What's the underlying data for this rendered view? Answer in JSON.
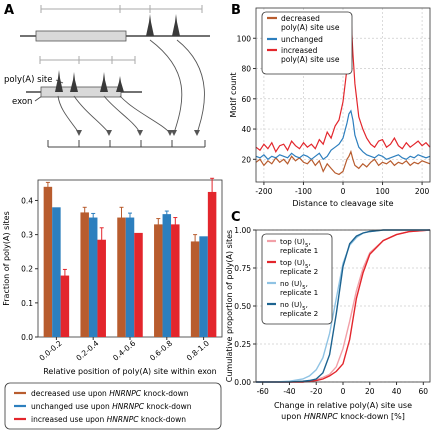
{
  "panels": {
    "a": {
      "letter": "A"
    },
    "b": {
      "letter": "B"
    },
    "c": {
      "letter": "C"
    }
  },
  "colors": {
    "decreased": "#b85c2e",
    "unchanged": "#2d7fbe",
    "increased": "#e3262c",
    "light_red": "#f2a0a8",
    "light_blue": "#8fc3e4",
    "dark_blue": "#1d6390",
    "gene_fill": "#d9d9d9",
    "peak": "#3a3a3a"
  },
  "schematic": {
    "polya_label": "poly(A) site",
    "exon_label": "exon"
  },
  "chart_data": [
    {
      "type": "bar",
      "panel": "A",
      "categories": [
        "0.0-0.2",
        "0.2-0.4",
        "0.4-0.6",
        "0.6-0.8",
        "0.8-1.0"
      ],
      "series": [
        {
          "name": "decreased use upon HNRNPC knock-down",
          "values": [
            0.44,
            0.365,
            0.35,
            0.33,
            0.28
          ],
          "errors": [
            0.013,
            0.015,
            0.03,
            0.017,
            0.02
          ]
        },
        {
          "name": "unchanged use upon HNRNPC knock-down",
          "values": [
            0.38,
            0.35,
            0.35,
            0.36,
            0.295
          ],
          "errors": [
            0.0,
            0.012,
            0.013,
            0.009,
            0.0
          ]
        },
        {
          "name": "increased use upon HNRNPC knock-down",
          "values": [
            0.18,
            0.285,
            0.305,
            0.33,
            0.425
          ],
          "errors": [
            0.018,
            0.035,
            0.0,
            0.02,
            0.04
          ]
        }
      ],
      "yticks": [
        0.0,
        0.1,
        0.2,
        0.3,
        0.4
      ],
      "ylim": [
        0,
        0.46
      ],
      "ylabel": "Fraction of poly(A) sites",
      "xlabel": "Relative position of poly(A) site within exon",
      "legend": {
        "items": [
          {
            "prefix": "decreased use upon ",
            "gene": "HNRNPC",
            "suffix": " knock-down"
          },
          {
            "prefix": "unchanged use upon ",
            "gene": "HNRNPC",
            "suffix": " knock-down"
          },
          {
            "prefix": "increased use upon ",
            "gene": "HNRNPC",
            "suffix": " knock-down"
          }
        ]
      }
    },
    {
      "type": "line",
      "panel": "B",
      "x": [
        -220,
        -210,
        -200,
        -190,
        -180,
        -170,
        -160,
        -150,
        -140,
        -130,
        -120,
        -110,
        -100,
        -90,
        -80,
        -70,
        -60,
        -50,
        -40,
        -30,
        -20,
        -10,
        0,
        10,
        15,
        20,
        25,
        30,
        40,
        50,
        60,
        70,
        80,
        90,
        100,
        110,
        120,
        130,
        140,
        150,
        160,
        170,
        180,
        190,
        200,
        210,
        220
      ],
      "series": [
        {
          "name": "decreased poly(A) site use",
          "values": [
            18,
            20,
            16,
            19,
            17,
            21,
            18,
            20,
            17,
            22,
            19,
            21,
            18,
            17,
            20,
            16,
            19,
            12,
            17,
            14,
            11,
            10,
            12,
            20,
            22,
            25,
            20,
            16,
            14,
            17,
            15,
            18,
            20,
            16,
            18,
            17,
            19,
            16,
            18,
            17,
            19,
            16,
            18,
            17,
            19,
            18,
            17
          ]
        },
        {
          "name": "unchanged",
          "values": [
            22,
            21,
            23,
            20,
            22,
            21,
            23,
            22,
            21,
            24,
            22,
            21,
            23,
            22,
            20,
            22,
            24,
            20,
            22,
            26,
            28,
            30,
            34,
            44,
            50,
            52,
            46,
            36,
            28,
            25,
            23,
            22,
            21,
            23,
            22,
            20,
            21,
            22,
            23,
            21,
            20,
            22,
            21,
            23,
            22,
            21,
            22
          ]
        },
        {
          "name": "increased poly(A) site use",
          "values": [
            28,
            26,
            30,
            27,
            31,
            25,
            29,
            30,
            26,
            32,
            29,
            27,
            31,
            28,
            30,
            27,
            33,
            30,
            38,
            34,
            42,
            46,
            58,
            80,
            100,
            115,
            90,
            70,
            48,
            40,
            34,
            30,
            28,
            32,
            33,
            28,
            30,
            34,
            29,
            27,
            31,
            28,
            30,
            32,
            29,
            31,
            28
          ]
        }
      ],
      "xticks": [
        -200,
        -100,
        0,
        100,
        200
      ],
      "yticks": [
        20,
        40,
        60,
        80,
        100
      ],
      "xlim": [
        -220,
        220
      ],
      "ylim": [
        5,
        120
      ],
      "xlabel": "Distance to cleavage site",
      "ylabel": "Motif count",
      "legend_labels": [
        "decreased\npoly(A) site use",
        "unchanged",
        "increased\npoly(A) site use"
      ],
      "legend_position": "top-left"
    },
    {
      "type": "line",
      "panel": "C",
      "x": [
        -65,
        -50,
        -40,
        -30,
        -25,
        -20,
        -15,
        -10,
        -5,
        0,
        5,
        10,
        15,
        20,
        30,
        40,
        50,
        65
      ],
      "series": [
        {
          "name": "top (U)5, replicate 1",
          "values": [
            0.0,
            0.0,
            0.0,
            0.0,
            0.005,
            0.015,
            0.03,
            0.05,
            0.1,
            0.22,
            0.4,
            0.6,
            0.75,
            0.85,
            0.93,
            0.97,
            0.99,
            1.0
          ]
        },
        {
          "name": "top (U)5, replicate 2",
          "values": [
            0.0,
            0.0,
            0.0,
            0.0,
            0.005,
            0.01,
            0.02,
            0.04,
            0.07,
            0.12,
            0.28,
            0.55,
            0.72,
            0.84,
            0.93,
            0.97,
            0.99,
            1.0
          ]
        },
        {
          "name": "no (U)5, replicate 1",
          "values": [
            0.0,
            0.0,
            0.005,
            0.02,
            0.04,
            0.08,
            0.16,
            0.32,
            0.55,
            0.78,
            0.9,
            0.95,
            0.98,
            0.99,
            1.0,
            1.0,
            1.0,
            1.0
          ]
        },
        {
          "name": "no (U)5, replicate 2",
          "values": [
            0.0,
            0.0,
            0.0,
            0.005,
            0.01,
            0.02,
            0.06,
            0.18,
            0.45,
            0.76,
            0.91,
            0.96,
            0.98,
            0.99,
            1.0,
            1.0,
            1.0,
            1.0
          ]
        }
      ],
      "legend_items": [
        {
          "line1": "top (U)",
          "sub": "5",
          "line1_end": ",",
          "line2": "replicate 1"
        },
        {
          "line1": "top (U)",
          "sub": "5",
          "line1_end": ",",
          "line2": "replicate 2"
        },
        {
          "line1": "no (U)",
          "sub": "5",
          "line1_end": ",",
          "line2": "replicate 1"
        },
        {
          "line1": "no (U)",
          "sub": "5",
          "line1_end": ",",
          "line2": "replicate 2"
        }
      ],
      "xticks": [
        -60,
        -40,
        -20,
        0,
        20,
        40,
        60
      ],
      "yticks": [
        "0.00",
        "0.25",
        "0.50",
        "0.75",
        "1.00"
      ],
      "xlim": [
        -65,
        65
      ],
      "ylim": [
        0,
        1.0
      ],
      "ylabel": "Cumulative proportion of poly(A) sites",
      "xlabel_line1": "Change in relative poly(A) site use",
      "xlabel_line2_prefix": "upon ",
      "xlabel_line2_gene": "HNRNPC",
      "xlabel_line2_suffix": " knock-down [%]",
      "legend_position": "top-left"
    }
  ]
}
